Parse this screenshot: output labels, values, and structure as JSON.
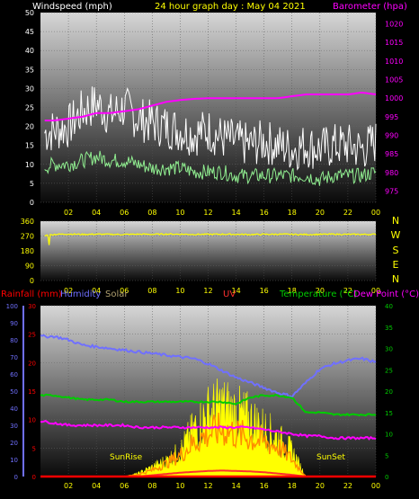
{
  "header": {
    "windspeed_label": "Windspeed (mph)",
    "graph_title": "24 hour graph day : May 04 2021",
    "barometer_label": "Barometer (hpa)"
  },
  "directions": [
    "N",
    "W",
    "S",
    "E",
    "N"
  ],
  "legend": {
    "rainfall": "Rainfall (mm)",
    "humidity": "Humidity",
    "solar": "Solar",
    "uv": "UV",
    "temperature": "Temperature (°C)",
    "dewpoint": "Dew Point (°C)"
  },
  "annotations": {
    "sunrise": "SunRise",
    "sunset": "SunSet"
  },
  "colors": {
    "wind_gust": "#ffffff",
    "wind_avg": "#90ee90",
    "barometer": "#ff00ff",
    "direction": "#ffff00",
    "humidity": "#7070ff",
    "temperature": "#00cc00",
    "dewpoint": "#ff00ff",
    "solar": "#ffff00",
    "solar_avg": "#ff8c00",
    "rain": "#ff0000",
    "uv": "#ff3030"
  },
  "chart_data": [
    {
      "type": "line",
      "x_ticks": [
        "02",
        "04",
        "06",
        "08",
        "10",
        "12",
        "14",
        "16",
        "18",
        "20",
        "22",
        "00"
      ],
      "xlim": [
        0,
        24
      ],
      "y_left_ticks": [
        0,
        5,
        10,
        15,
        20,
        25,
        30,
        35,
        40,
        45,
        50
      ],
      "ylim_left": [
        0,
        50
      ],
      "y_right_ticks": [
        975,
        980,
        985,
        990,
        995,
        1000,
        1005,
        1010,
        1015,
        1020
      ],
      "ylim_right": [
        972,
        1023
      ],
      "series": [
        {
          "axis": "left",
          "kind": "gust",
          "x": [
            0,
            1,
            2,
            3,
            4,
            5,
            6,
            7,
            8,
            9,
            10,
            11,
            12,
            13,
            14,
            15,
            16,
            17,
            18,
            19,
            20,
            21,
            22,
            23,
            24
          ],
          "values": [
            18,
            19,
            20,
            24,
            26,
            23,
            25,
            22,
            21,
            20,
            19,
            18,
            19,
            17,
            16,
            15,
            16,
            15,
            14,
            15,
            14,
            15,
            15,
            14,
            16
          ]
        },
        {
          "axis": "left",
          "kind": "average",
          "x": [
            0,
            1,
            2,
            3,
            4,
            5,
            6,
            7,
            8,
            9,
            10,
            11,
            12,
            13,
            14,
            15,
            16,
            17,
            18,
            19,
            20,
            21,
            22,
            23,
            24
          ],
          "values": [
            9,
            10,
            10,
            11,
            12,
            11,
            11,
            10,
            9,
            9,
            9,
            8,
            8,
            8,
            7,
            7,
            7,
            7,
            7,
            7,
            6,
            7,
            7,
            7,
            8
          ]
        },
        {
          "axis": "right",
          "kind": "barometer",
          "x": [
            0,
            1,
            2,
            3,
            4,
            5,
            6,
            7,
            8,
            9,
            10,
            11,
            12,
            13,
            14,
            15,
            16,
            17,
            18,
            19,
            20,
            21,
            22,
            23,
            24
          ],
          "values": [
            994,
            994,
            994.5,
            995,
            996,
            996,
            996.5,
            997,
            998,
            999,
            999.5,
            999.8,
            1000,
            1000,
            1000,
            1000,
            1000,
            1000,
            1000.5,
            1001,
            1001,
            1001,
            1001,
            1001.5,
            1001
          ]
        }
      ]
    },
    {
      "type": "line",
      "x_ticks": [
        "02",
        "04",
        "06",
        "08",
        "10",
        "12",
        "14",
        "16",
        "18",
        "20",
        "22",
        "00"
      ],
      "xlim": [
        0,
        24
      ],
      "y_ticks": [
        0,
        90,
        180,
        270,
        360
      ],
      "ylim": [
        0,
        360
      ],
      "series": [
        {
          "kind": "direction",
          "x": [
            0,
            1,
            2,
            3,
            4,
            5,
            6,
            7,
            8,
            9,
            10,
            11,
            12,
            13,
            14,
            15,
            16,
            17,
            18,
            19,
            20,
            21,
            22,
            23,
            24
          ],
          "values": [
            270,
            280,
            282,
            280,
            281,
            280,
            279,
            281,
            280,
            282,
            281,
            280,
            280,
            281,
            280,
            279,
            280,
            281,
            280,
            279,
            280,
            281,
            280,
            280,
            280
          ]
        }
      ]
    },
    {
      "type": "line",
      "x_ticks": [
        "02",
        "04",
        "06",
        "08",
        "10",
        "12",
        "14",
        "16",
        "18",
        "20",
        "22",
        "00"
      ],
      "xlim": [
        0,
        24
      ],
      "y_humidity_ticks": [
        0,
        10,
        20,
        30,
        40,
        50,
        60,
        70,
        80,
        90,
        100
      ],
      "ylim_humidity": [
        0,
        100
      ],
      "y_rain_ticks": [
        0,
        5,
        10,
        15,
        20,
        25,
        30
      ],
      "ylim_rain": [
        0,
        30
      ],
      "y_temp_ticks": [
        0,
        5,
        10,
        15,
        20,
        25,
        30,
        35,
        40
      ],
      "ylim_temp": [
        0,
        40
      ],
      "series": [
        {
          "kind": "humidity",
          "axis": "humidity",
          "x": [
            0,
            1,
            2,
            3,
            4,
            5,
            6,
            7,
            8,
            9,
            10,
            11,
            12,
            13,
            14,
            15,
            16,
            17,
            18,
            19,
            20,
            21,
            22,
            23,
            24
          ],
          "values": [
            82,
            82,
            80,
            77,
            76,
            75,
            74,
            73,
            72,
            71,
            70,
            69,
            66,
            62,
            58,
            55,
            52,
            49,
            47,
            55,
            63,
            66,
            68,
            69,
            67
          ]
        },
        {
          "kind": "temperature",
          "axis": "temp",
          "x": [
            0,
            1,
            2,
            3,
            4,
            5,
            6,
            7,
            8,
            9,
            10,
            11,
            12,
            13,
            14,
            15,
            16,
            17,
            18,
            19,
            20,
            21,
            22,
            23,
            24
          ],
          "values": [
            19,
            19,
            18.5,
            18,
            18,
            18,
            17.5,
            17.5,
            17.5,
            17.5,
            17.5,
            17.5,
            17.5,
            17.5,
            17,
            18.5,
            19,
            19,
            18.5,
            15,
            15,
            14.5,
            14.5,
            14.5,
            14.5
          ]
        },
        {
          "kind": "dewpoint",
          "axis": "temp",
          "x": [
            0,
            1,
            2,
            3,
            4,
            5,
            6,
            7,
            8,
            9,
            10,
            11,
            12,
            13,
            14,
            15,
            16,
            17,
            18,
            19,
            20,
            21,
            22,
            23,
            24
          ],
          "values": [
            13,
            12.5,
            12,
            12,
            12,
            12,
            12,
            11.5,
            11.5,
            11.5,
            11.5,
            11.5,
            11.5,
            11.5,
            11.5,
            11.5,
            11,
            10.5,
            10,
            9.5,
            9.5,
            9,
            9,
            9,
            9
          ]
        },
        {
          "kind": "solar",
          "axis": "temp",
          "x": [
            6,
            7,
            8,
            9,
            10,
            11,
            12,
            13,
            14,
            15,
            16,
            17,
            18,
            19
          ],
          "values": [
            0,
            1,
            3,
            5,
            8,
            15,
            20,
            22,
            20,
            18,
            15,
            12,
            8,
            0
          ]
        },
        {
          "kind": "solar_avg",
          "axis": "temp",
          "x": [
            6,
            7,
            8,
            9,
            10,
            11,
            12,
            13,
            14,
            15,
            16,
            17,
            18,
            19
          ],
          "values": [
            0,
            0.5,
            1.5,
            3,
            5,
            8,
            10,
            11,
            10,
            9,
            8,
            7,
            4,
            0
          ]
        },
        {
          "kind": "rainfall",
          "axis": "rain",
          "x": [
            0,
            24
          ],
          "values": [
            0,
            0
          ]
        },
        {
          "kind": "uv",
          "axis": "temp",
          "x": [
            7,
            8,
            9,
            10,
            11,
            12,
            13,
            14,
            15,
            16,
            17,
            18,
            19
          ],
          "values": [
            0,
            0.3,
            0.6,
            0.9,
            1.1,
            1.3,
            1.4,
            1.3,
            1.2,
            1.0,
            0.7,
            0.4,
            0
          ]
        }
      ]
    }
  ]
}
